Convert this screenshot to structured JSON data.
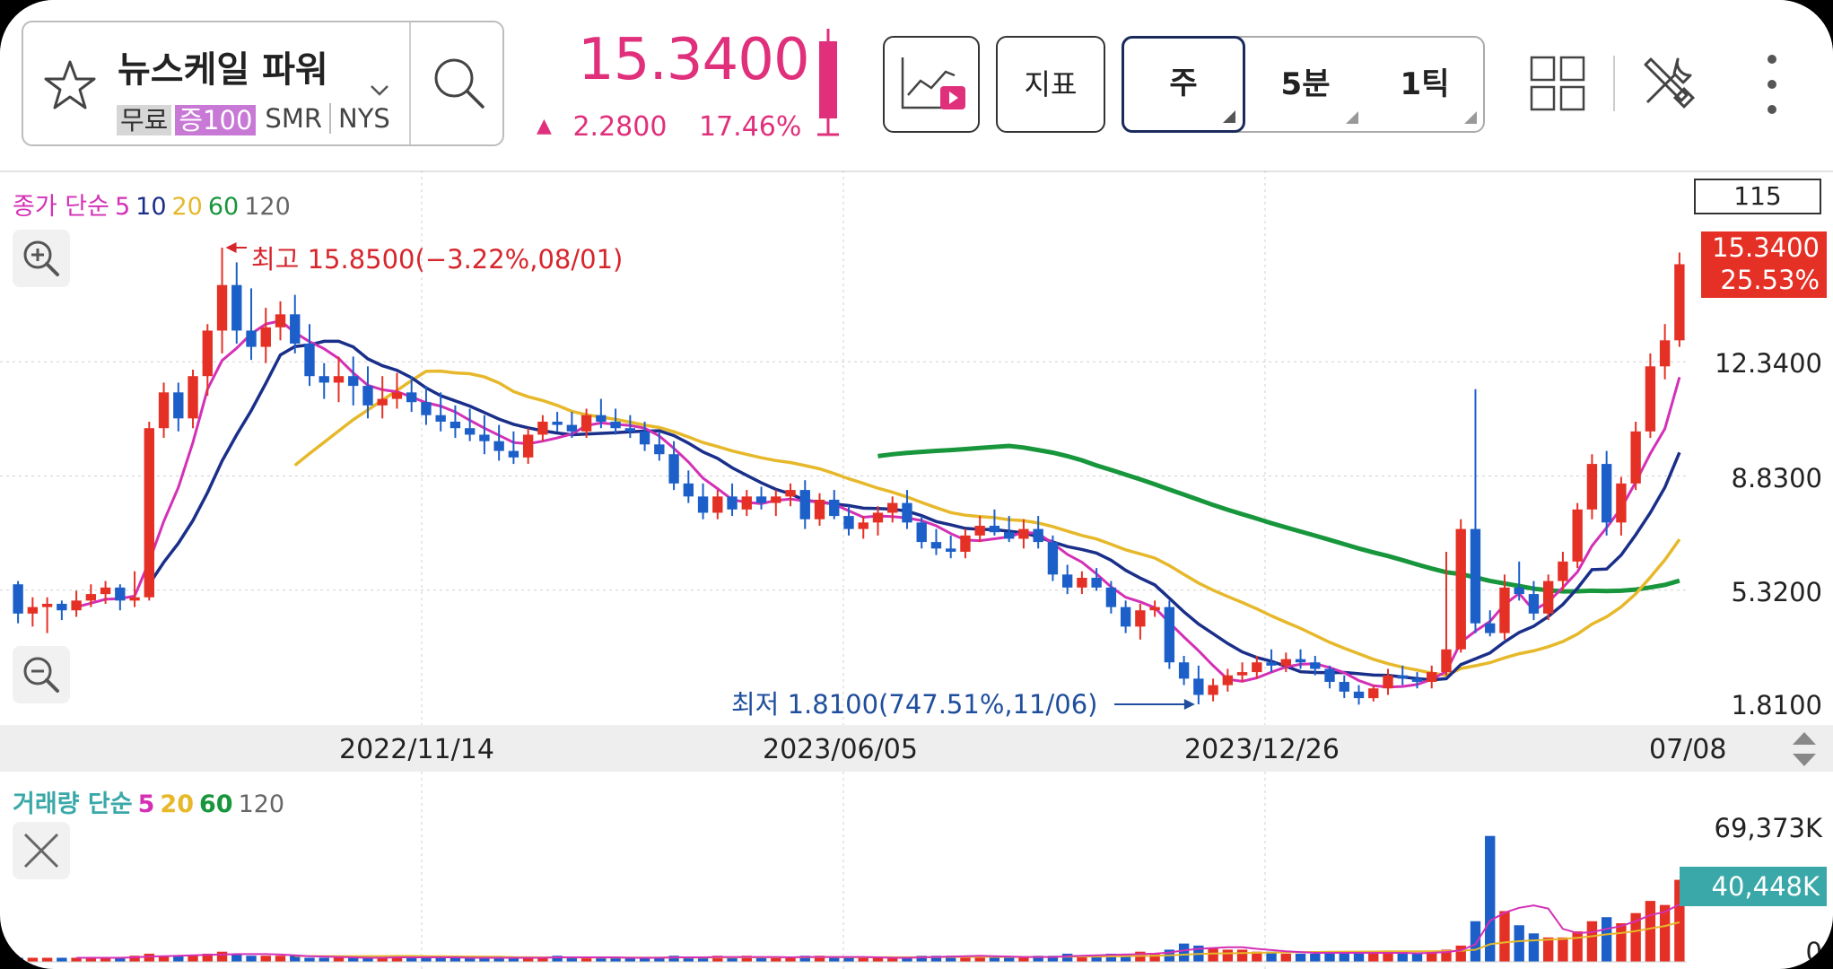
{
  "header": {
    "stock_name": "뉴스케일 파워",
    "tags": {
      "free": "무료",
      "margin": "증100",
      "ticker": "SMR",
      "exchange": "NYS"
    },
    "price": "15.3400",
    "change_value": "2.2800",
    "change_percent": "17.46%",
    "indicator_label": "지표",
    "periods": {
      "week": "주",
      "five_min": "5분",
      "one_tick": "1틱"
    }
  },
  "legends": {
    "price_ma": {
      "prefix": "종가 단순",
      "p5": "5",
      "p10": "10",
      "p20": "20",
      "p60": "60",
      "p120": "120"
    },
    "volume_ma": {
      "prefix": "거래량 단순",
      "p5": "5",
      "p20": "20",
      "p60": "60",
      "p120": "120"
    }
  },
  "candle_count": "115",
  "price_axis": {
    "labels": [
      "12.3400",
      "8.8300",
      "5.3200",
      "1.8100"
    ],
    "current_price": "15.3400",
    "current_percent": "25.53%"
  },
  "annotations": {
    "high": "최고 15.8500(−3.22%,08/01)",
    "low": "최저 1.8100(747.51%,11/06)"
  },
  "x_axis": {
    "labels": [
      "2022/11/14",
      "2023/06/05",
      "2023/12/26",
      "07/08"
    ]
  },
  "volume_axis": {
    "top": "69,373K",
    "current": "40,448K",
    "bottom": "0"
  },
  "colors": {
    "up": "#e53025",
    "down": "#1c5fc9",
    "ma5": "#d430b6",
    "ma10": "#1a2f8a",
    "ma20": "#e6b82a",
    "ma60": "#17963c",
    "ma120": "#666666"
  },
  "chart_data": {
    "type": "candlestick",
    "y_range": [
      1.81,
      15.85
    ],
    "candles": [
      [
        5.5,
        5.6,
        4.3,
        4.6
      ],
      [
        4.6,
        5.1,
        4.2,
        4.8
      ],
      [
        4.8,
        5.1,
        4.0,
        4.9
      ],
      [
        4.9,
        5.0,
        4.4,
        4.7
      ],
      [
        4.7,
        5.3,
        4.5,
        5.0
      ],
      [
        5.0,
        5.5,
        4.8,
        5.2
      ],
      [
        5.2,
        5.6,
        4.9,
        5.4
      ],
      [
        5.4,
        5.5,
        4.7,
        5.0
      ],
      [
        5.0,
        5.9,
        4.8,
        5.1
      ],
      [
        5.1,
        10.5,
        5.0,
        10.3
      ],
      [
        10.3,
        11.7,
        10.0,
        11.4
      ],
      [
        11.4,
        11.7,
        10.2,
        10.6
      ],
      [
        10.6,
        12.1,
        10.3,
        11.9
      ],
      [
        11.9,
        13.5,
        11.3,
        13.3
      ],
      [
        13.3,
        15.85,
        12.6,
        14.7
      ],
      [
        14.7,
        15.4,
        12.9,
        13.3
      ],
      [
        13.3,
        14.6,
        12.4,
        12.8
      ],
      [
        12.8,
        14.0,
        12.3,
        13.4
      ],
      [
        13.4,
        14.2,
        13.0,
        13.8
      ],
      [
        13.8,
        14.4,
        12.6,
        12.9
      ],
      [
        12.9,
        13.5,
        11.6,
        11.9
      ],
      [
        11.9,
        12.3,
        11.2,
        11.7
      ],
      [
        11.7,
        12.5,
        11.1,
        11.9
      ],
      [
        11.9,
        12.5,
        11.0,
        11.6
      ],
      [
        11.6,
        12.2,
        10.6,
        11.0
      ],
      [
        11.0,
        11.9,
        10.6,
        11.2
      ],
      [
        11.2,
        12.0,
        10.9,
        11.4
      ],
      [
        11.4,
        11.9,
        10.8,
        11.1
      ],
      [
        11.1,
        11.6,
        10.4,
        10.7
      ],
      [
        10.7,
        11.4,
        10.2,
        10.5
      ],
      [
        10.5,
        11.0,
        10.0,
        10.3
      ],
      [
        10.3,
        10.9,
        9.9,
        10.1
      ],
      [
        10.1,
        10.7,
        9.5,
        9.9
      ],
      [
        9.9,
        10.4,
        9.3,
        9.6
      ],
      [
        9.6,
        10.2,
        9.2,
        9.4
      ],
      [
        9.4,
        10.3,
        9.2,
        10.1
      ],
      [
        10.1,
        10.7,
        9.9,
        10.5
      ],
      [
        10.5,
        10.8,
        10.2,
        10.4
      ],
      [
        10.4,
        10.8,
        10.0,
        10.2
      ],
      [
        10.2,
        10.9,
        10.0,
        10.7
      ],
      [
        10.7,
        11.2,
        10.3,
        10.5
      ],
      [
        10.5,
        10.9,
        10.1,
        10.3
      ],
      [
        10.3,
        10.7,
        10.0,
        10.2
      ],
      [
        10.2,
        10.5,
        9.6,
        9.8
      ],
      [
        9.8,
        10.2,
        9.3,
        9.5
      ],
      [
        9.5,
        9.9,
        8.4,
        8.6
      ],
      [
        8.6,
        9.0,
        8.0,
        8.2
      ],
      [
        8.2,
        8.6,
        7.5,
        7.7
      ],
      [
        7.7,
        8.4,
        7.5,
        8.2
      ],
      [
        8.2,
        8.6,
        7.6,
        7.8
      ],
      [
        7.8,
        8.4,
        7.6,
        8.2
      ],
      [
        8.2,
        8.5,
        7.8,
        8.0
      ],
      [
        8.0,
        8.4,
        7.6,
        8.2
      ],
      [
        8.2,
        8.6,
        7.9,
        8.4
      ],
      [
        8.4,
        8.7,
        7.2,
        7.5
      ],
      [
        7.5,
        8.3,
        7.3,
        8.1
      ],
      [
        8.1,
        8.4,
        7.5,
        7.6
      ],
      [
        7.6,
        7.9,
        7.0,
        7.2
      ],
      [
        7.2,
        7.6,
        6.9,
        7.4
      ],
      [
        7.4,
        7.9,
        7.0,
        7.7
      ],
      [
        7.7,
        8.2,
        7.4,
        8.0
      ],
      [
        8.0,
        8.4,
        7.2,
        7.4
      ],
      [
        7.4,
        7.6,
        6.6,
        6.8
      ],
      [
        6.8,
        7.2,
        6.4,
        6.6
      ],
      [
        6.6,
        7.0,
        6.3,
        6.5
      ],
      [
        6.5,
        7.2,
        6.3,
        7.0
      ],
      [
        7.0,
        7.6,
        6.8,
        7.3
      ],
      [
        7.3,
        7.8,
        7.0,
        7.1
      ],
      [
        7.1,
        7.6,
        6.8,
        6.9
      ],
      [
        6.9,
        7.5,
        6.6,
        7.2
      ],
      [
        7.2,
        7.6,
        6.6,
        6.8
      ],
      [
        6.8,
        7.0,
        5.6,
        5.8
      ],
      [
        5.8,
        6.1,
        5.2,
        5.4
      ],
      [
        5.4,
        5.9,
        5.2,
        5.7
      ],
      [
        5.7,
        6.0,
        5.3,
        5.4
      ],
      [
        5.4,
        5.6,
        4.6,
        4.8
      ],
      [
        4.8,
        5.0,
        4.0,
        4.2
      ],
      [
        4.2,
        4.9,
        3.8,
        4.7
      ],
      [
        4.7,
        5.0,
        4.5,
        4.8
      ],
      [
        4.8,
        5.0,
        2.9,
        3.1
      ],
      [
        3.1,
        3.3,
        2.4,
        2.6
      ],
      [
        2.6,
        3.0,
        1.81,
        2.1
      ],
      [
        2.1,
        2.6,
        1.9,
        2.4
      ],
      [
        2.4,
        2.9,
        2.2,
        2.7
      ],
      [
        2.7,
        3.1,
        2.5,
        2.8
      ],
      [
        2.8,
        3.3,
        2.6,
        3.1
      ],
      [
        3.1,
        3.5,
        2.8,
        3.0
      ],
      [
        3.0,
        3.4,
        2.8,
        3.2
      ],
      [
        3.2,
        3.5,
        2.9,
        3.1
      ],
      [
        3.1,
        3.3,
        2.7,
        2.9
      ],
      [
        2.9,
        3.0,
        2.3,
        2.5
      ],
      [
        2.5,
        2.7,
        2.0,
        2.2
      ],
      [
        2.2,
        2.4,
        1.8,
        2.0
      ],
      [
        2.0,
        2.4,
        1.9,
        2.3
      ],
      [
        2.3,
        2.9,
        2.1,
        2.7
      ],
      [
        2.7,
        3.0,
        2.4,
        2.6
      ],
      [
        2.6,
        2.8,
        2.3,
        2.5
      ],
      [
        2.5,
        3.0,
        2.3,
        2.8
      ],
      [
        2.8,
        6.5,
        2.7,
        3.5
      ],
      [
        3.5,
        7.5,
        3.4,
        7.2
      ],
      [
        7.2,
        11.5,
        4.0,
        4.3
      ],
      [
        4.3,
        4.7,
        3.9,
        4.0
      ],
      [
        4.0,
        5.8,
        3.8,
        5.4
      ],
      [
        5.4,
        6.2,
        5.0,
        5.2
      ],
      [
        5.2,
        5.6,
        4.4,
        4.6
      ],
      [
        4.6,
        5.8,
        4.4,
        5.6
      ],
      [
        5.6,
        6.5,
        5.3,
        6.2
      ],
      [
        6.2,
        8.0,
        6.0,
        7.8
      ],
      [
        7.8,
        9.5,
        7.5,
        9.2
      ],
      [
        9.2,
        9.6,
        7.0,
        7.4
      ],
      [
        7.4,
        8.8,
        7.0,
        8.6
      ],
      [
        8.6,
        10.5,
        8.4,
        10.2
      ],
      [
        10.2,
        12.6,
        10.0,
        12.2
      ],
      [
        12.2,
        13.5,
        11.8,
        13.0
      ],
      [
        13.0,
        15.7,
        12.8,
        15.34
      ]
    ],
    "volume": [
      2,
      2,
      2,
      2,
      2,
      2,
      2,
      2,
      3,
      4,
      3,
      3,
      3,
      4,
      5,
      4,
      3,
      3,
      3,
      3,
      2,
      2,
      2,
      2,
      2,
      2,
      3,
      2,
      2,
      2,
      2,
      2,
      2,
      2,
      2,
      2,
      2,
      3,
      2,
      2,
      2,
      2,
      2,
      2,
      2,
      3,
      2,
      2,
      3,
      2,
      3,
      2,
      2,
      2,
      3,
      3,
      2,
      2,
      2,
      2,
      2,
      2,
      3,
      3,
      3,
      3,
      3,
      2,
      2,
      2,
      3,
      3,
      4,
      3,
      3,
      4,
      4,
      5,
      4,
      6,
      9,
      8,
      7,
      6,
      6,
      5,
      5,
      4,
      4,
      4,
      5,
      5,
      4,
      4,
      4,
      5,
      4,
      5,
      6,
      8,
      20,
      62,
      25,
      18,
      14,
      12,
      12,
      15,
      20,
      22,
      19,
      24,
      30,
      28,
      40.4
    ]
  }
}
